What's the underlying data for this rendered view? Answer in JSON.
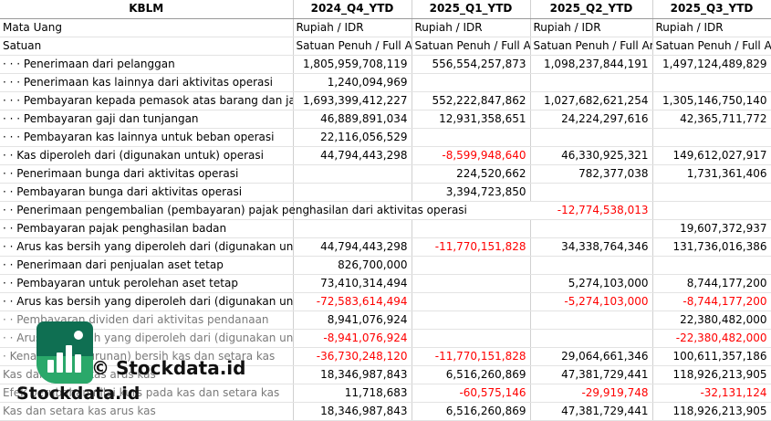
{
  "header": {
    "label": "KBLM",
    "periods": [
      "2024_Q4_YTD",
      "2025_Q1_YTD",
      "2025_Q2_YTD",
      "2025_Q3_YTD"
    ]
  },
  "meta_rows": [
    {
      "label": "Mata Uang",
      "values": [
        "Rupiah / IDR",
        "Rupiah / IDR",
        "Rupiah / IDR",
        "Rupiah / IDR"
      ]
    },
    {
      "label": "Satuan",
      "values": [
        "Satuan Penuh / Full Amount",
        "Satuan Penuh / Full Amount",
        "Satuan Penuh / Full Amount",
        "Satuan Penuh / Full Amount"
      ]
    }
  ],
  "rows": [
    {
      "label": "· · · Penerimaan dari pelanggan",
      "values": [
        "1,805,959,708,119",
        "556,554,257,873",
        "1,098,237,844,191",
        "1,497,124,489,829"
      ]
    },
    {
      "label": "· · · Penerimaan kas lainnya dari aktivitas operasi",
      "values": [
        "1,240,094,969",
        "",
        "",
        ""
      ]
    },
    {
      "label": "· · · Pembayaran kepada pemasok atas barang dan jasa",
      "values": [
        "1,693,399,412,227",
        "552,222,847,862",
        "1,027,682,621,254",
        "1,305,146,750,140"
      ]
    },
    {
      "label": "· · · Pembayaran gaji dan tunjangan",
      "values": [
        "46,889,891,034",
        "12,931,358,651",
        "24,224,297,616",
        "42,365,711,772"
      ]
    },
    {
      "label": "· · · Pembayaran kas lainnya untuk beban operasi",
      "values": [
        "22,116,056,529",
        "",
        "",
        ""
      ]
    },
    {
      "label": "· · Kas diperoleh dari (digunakan untuk) operasi",
      "values": [
        "44,794,443,298",
        "-8,599,948,640",
        "46,330,925,321",
        "149,612,027,917"
      ]
    },
    {
      "label": "· · Penerimaan bunga dari aktivitas operasi",
      "values": [
        "",
        "224,520,662",
        "782,377,038",
        "1,731,361,406"
      ]
    },
    {
      "label": "· · Pembayaran bunga dari aktivitas operasi",
      "values": [
        "",
        "3,394,723,850",
        "",
        ""
      ]
    },
    {
      "label": "· · Penerimaan pengembalian (pembayaran) pajak penghasilan dari aktivitas operasi",
      "values": [
        "",
        "",
        "-12,774,538,013",
        ""
      ]
    },
    {
      "label": "· · Pembayaran pajak penghasilan badan",
      "values": [
        "",
        "",
        "",
        "19,607,372,937"
      ]
    },
    {
      "label": "· · Arus kas bersih yang diperoleh dari (digunakan untuk) aktivitas operasi",
      "values": [
        "44,794,443,298",
        "-11,770,151,828",
        "34,338,764,346",
        "131,736,016,386"
      ]
    },
    {
      "label": "· · Penerimaan dari penjualan aset tetap",
      "values": [
        "826,700,000",
        "",
        "",
        ""
      ]
    },
    {
      "label": "· · Pembayaran untuk perolehan aset tetap",
      "values": [
        "73,410,314,494",
        "",
        "5,274,103,000",
        "8,744,177,200"
      ]
    },
    {
      "label": "· · Arus kas bersih yang diperoleh dari (digunakan untuk) aktivitas investasi",
      "values": [
        "-72,583,614,494",
        "",
        "-5,274,103,000",
        "-8,744,177,200"
      ]
    },
    {
      "label": "· · Pembayaran dividen dari aktivitas pendanaan",
      "values": [
        "8,941,076,924",
        "",
        "",
        "22,380,482,000"
      ]
    },
    {
      "label": "· · Arus kas bersih yang diperoleh dari (digunakan untuk) aktivitas pendanaan",
      "values": [
        "-8,941,076,924",
        "",
        "",
        "-22,380,482,000"
      ]
    },
    {
      "label": "· Kenaikan (penurunan) bersih kas dan setara kas",
      "values": [
        "-36,730,248,120",
        "-11,770,151,828",
        "29,064,661,346",
        "100,611,357,186"
      ]
    },
    {
      "label": "Kas dan setara kas arus kas",
      "values": [
        "18,346,987,843",
        "6,516,260,869",
        "47,381,729,441",
        "118,926,213,905"
      ]
    },
    {
      "label": "Efek perubahan nilai kurs pada kas dan setara kas",
      "values": [
        "11,718,683",
        "-60,575,146",
        "-29,919,748",
        "-32,131,124"
      ]
    },
    {
      "label": "Kas dan setara kas arus kas",
      "values": [
        "18,346,987,843",
        "6,516,260,869",
        "47,381,729,441",
        "118,926,213,905"
      ]
    }
  ],
  "watermark": {
    "line1": "© Stockdata.id",
    "line2": "Stockdata.id",
    "logo_icon": "bar-chart-logo-icon"
  },
  "colors": {
    "negative": "#ff0000",
    "logo_dark": "#0f6f52",
    "logo_light": "#2fb36f"
  }
}
